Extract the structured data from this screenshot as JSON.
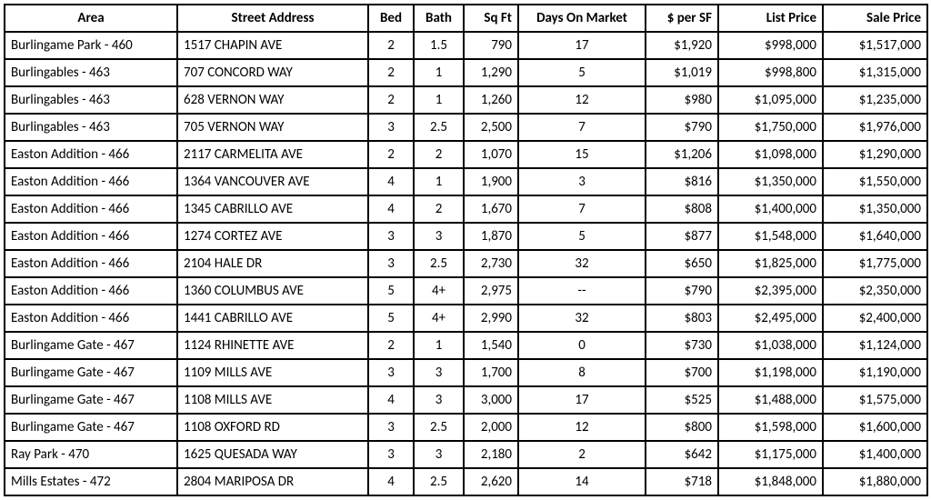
{
  "table": {
    "columns": [
      {
        "key": "area",
        "label": "Area",
        "class": "col-area"
      },
      {
        "key": "addr",
        "label": "Street Address",
        "class": "col-addr"
      },
      {
        "key": "bed",
        "label": "Bed",
        "class": "col-bed"
      },
      {
        "key": "bath",
        "label": "Bath",
        "class": "col-bath"
      },
      {
        "key": "sqft",
        "label": "Sq Ft",
        "class": "col-sqft"
      },
      {
        "key": "dom",
        "label": "Days On Market",
        "class": "col-dom"
      },
      {
        "key": "psf",
        "label": "$ per SF",
        "class": "col-psf"
      },
      {
        "key": "list",
        "label": "List Price",
        "class": "col-list"
      },
      {
        "key": "sale",
        "label": "Sale Price",
        "class": "col-sale"
      }
    ],
    "rows": [
      {
        "area": "Burlingame Park - 460",
        "addr": "1517 CHAPIN AVE",
        "bed": "2",
        "bath": "1.5",
        "sqft": "790",
        "dom": "17",
        "psf": "$1,920",
        "list": "$998,000",
        "sale": "$1,517,000"
      },
      {
        "area": "Burlingables - 463",
        "addr": "707 CONCORD WAY",
        "bed": "2",
        "bath": "1",
        "sqft": "1,290",
        "dom": "5",
        "psf": "$1,019",
        "list": "$998,800",
        "sale": "$1,315,000"
      },
      {
        "area": "Burlingables - 463",
        "addr": "628 VERNON WAY",
        "bed": "2",
        "bath": "1",
        "sqft": "1,260",
        "dom": "12",
        "psf": "$980",
        "list": "$1,095,000",
        "sale": "$1,235,000"
      },
      {
        "area": "Burlingables - 463",
        "addr": "705 VERNON WAY",
        "bed": "3",
        "bath": "2.5",
        "sqft": "2,500",
        "dom": "7",
        "psf": "$790",
        "list": "$1,750,000",
        "sale": "$1,976,000"
      },
      {
        "area": "Easton Addition - 466",
        "addr": "2117 CARMELITA AVE",
        "bed": "2",
        "bath": "2",
        "sqft": "1,070",
        "dom": "15",
        "psf": "$1,206",
        "list": "$1,098,000",
        "sale": "$1,290,000"
      },
      {
        "area": "Easton Addition - 466",
        "addr": "1364 VANCOUVER AVE",
        "bed": "4",
        "bath": "1",
        "sqft": "1,900",
        "dom": "3",
        "psf": "$816",
        "list": "$1,350,000",
        "sale": "$1,550,000"
      },
      {
        "area": "Easton Addition - 466",
        "addr": "1345 CABRILLO AVE",
        "bed": "4",
        "bath": "2",
        "sqft": "1,670",
        "dom": "7",
        "psf": "$808",
        "list": "$1,400,000",
        "sale": "$1,350,000"
      },
      {
        "area": "Easton Addition - 466",
        "addr": "1274 CORTEZ AVE",
        "bed": "3",
        "bath": "3",
        "sqft": "1,870",
        "dom": "5",
        "psf": "$877",
        "list": "$1,548,000",
        "sale": "$1,640,000"
      },
      {
        "area": "Easton Addition - 466",
        "addr": "2104 HALE DR",
        "bed": "3",
        "bath": "2.5",
        "sqft": "2,730",
        "dom": "32",
        "psf": "$650",
        "list": "$1,825,000",
        "sale": "$1,775,000"
      },
      {
        "area": "Easton Addition - 466",
        "addr": "1360 COLUMBUS AVE",
        "bed": "5",
        "bath": "4+",
        "sqft": "2,975",
        "dom": "--",
        "psf": "$790",
        "list": "$2,395,000",
        "sale": "$2,350,000"
      },
      {
        "area": "Easton Addition - 466",
        "addr": "1441 CABRILLO AVE",
        "bed": "5",
        "bath": "4+",
        "sqft": "2,990",
        "dom": "32",
        "psf": "$803",
        "list": "$2,495,000",
        "sale": "$2,400,000"
      },
      {
        "area": "Burlingame Gate - 467",
        "addr": "1124 RHINETTE AVE",
        "bed": "2",
        "bath": "1",
        "sqft": "1,540",
        "dom": "0",
        "psf": "$730",
        "list": "$1,038,000",
        "sale": "$1,124,000"
      },
      {
        "area": "Burlingame Gate - 467",
        "addr": "1109 MILLS AVE",
        "bed": "3",
        "bath": "3",
        "sqft": "1,700",
        "dom": "8",
        "psf": "$700",
        "list": "$1,198,000",
        "sale": "$1,190,000"
      },
      {
        "area": "Burlingame Gate - 467",
        "addr": "1108 MILLS AVE",
        "bed": "4",
        "bath": "3",
        "sqft": "3,000",
        "dom": "17",
        "psf": "$525",
        "list": "$1,488,000",
        "sale": "$1,575,000"
      },
      {
        "area": "Burlingame Gate - 467",
        "addr": "1108 OXFORD RD",
        "bed": "3",
        "bath": "2.5",
        "sqft": "2,000",
        "dom": "12",
        "psf": "$800",
        "list": "$1,598,000",
        "sale": "$1,600,000"
      },
      {
        "area": "Ray Park - 470",
        "addr": "1625 QUESADA WAY",
        "bed": "3",
        "bath": "3",
        "sqft": "2,180",
        "dom": "2",
        "psf": "$642",
        "list": "$1,175,000",
        "sale": "$1,400,000"
      },
      {
        "area": "Mills Estates - 472",
        "addr": "2804 MARIPOSA DR",
        "bed": "4",
        "bath": "2.5",
        "sqft": "2,620",
        "dom": "14",
        "psf": "$718",
        "list": "$1,848,000",
        "sale": "$1,880,000"
      }
    ],
    "border_color": "#000000",
    "background_color": "#ffffff",
    "font_family": "Calibri, Arial, sans-serif",
    "font_size_pt": 11
  }
}
